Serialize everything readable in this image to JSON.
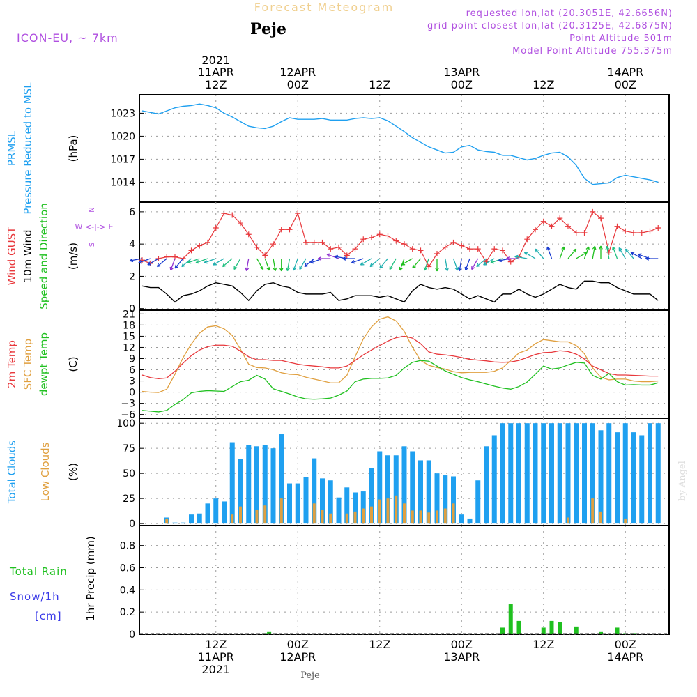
{
  "header": {
    "title": "Forecast Meteogram",
    "station": "Peje",
    "model": "ICON-EU, ~ 7km",
    "requested": "requested lon,lat (20.3051E, 42.6656N)",
    "gridpoint": "grid point closest lon,lat (20.3125E, 42.6875N)",
    "point_alt": "Point Altitude 501m",
    "model_alt": "Model Point Altitude 755.375m",
    "footer_station": "Peje",
    "watermark": "by Angel"
  },
  "colors": {
    "blue": "#1fa0f0",
    "red": "#e8383c",
    "orange": "#e0a040",
    "green": "#20c020",
    "black": "#000000",
    "purple": "#b050e0",
    "snow_blue": "#3a3ae8"
  },
  "chart_data": [
    {
      "panel": "pressure",
      "type": "line",
      "ylabels": [
        "PRMSL",
        "Pressure Reduced to MSL"
      ],
      "unit": "(hPa)",
      "ylim": [
        1011.4,
        1025.4
      ],
      "yticks": [
        1014,
        1017,
        1020,
        1023
      ],
      "grid": true,
      "x": [
        0,
        1,
        2,
        3,
        4,
        5,
        6,
        7,
        8,
        9,
        10,
        11,
        12,
        13,
        14,
        15,
        16,
        17,
        18,
        19,
        20,
        21,
        22,
        23,
        24,
        25,
        26,
        27,
        28,
        29,
        30,
        31,
        32,
        33,
        34,
        35,
        36,
        37,
        38,
        39,
        40,
        41,
        42,
        43,
        44,
        45,
        46,
        47,
        48,
        49,
        50,
        51,
        52,
        53,
        54,
        55,
        56,
        57,
        58,
        59,
        60,
        61,
        62,
        63
      ],
      "values": [
        1023.3,
        1023.1,
        1022.9,
        1023.3,
        1023.7,
        1023.9,
        1024.0,
        1024.2,
        1024.0,
        1023.7,
        1023.0,
        1022.5,
        1021.9,
        1021.3,
        1021.1,
        1021.0,
        1021.3,
        1021.9,
        1022.4,
        1022.2,
        1022.2,
        1022.2,
        1022.3,
        1022.1,
        1022.1,
        1022.1,
        1022.3,
        1022.4,
        1022.3,
        1022.4,
        1022.0,
        1021.3,
        1020.6,
        1019.8,
        1019.2,
        1018.6,
        1018.2,
        1017.8,
        1017.9,
        1018.6,
        1018.8,
        1018.2,
        1018.0,
        1017.9,
        1017.5,
        1017.5,
        1017.2,
        1016.9,
        1017.1,
        1017.5,
        1017.8,
        1017.9,
        1017.3,
        1016.2,
        1014.5,
        1013.7,
        1013.8,
        1013.9,
        1014.6,
        1014.9,
        1014.7,
        1014.5,
        1014.3,
        1014.0
      ]
    },
    {
      "panel": "wind",
      "type": "line",
      "ylabels": [
        "Wind GUST",
        "10m Wind",
        "Speed and Direction"
      ],
      "unit": "(m/s)",
      "compass": [
        "N",
        "W <-|-> E",
        "S"
      ],
      "ylim": [
        -0.1,
        6.6
      ],
      "yticks": [
        0,
        2,
        4,
        6
      ],
      "grid": true,
      "x": [
        0,
        1,
        2,
        3,
        4,
        5,
        6,
        7,
        8,
        9,
        10,
        11,
        12,
        13,
        14,
        15,
        16,
        17,
        18,
        19,
        20,
        21,
        22,
        23,
        24,
        25,
        26,
        27,
        28,
        29,
        30,
        31,
        32,
        33,
        34,
        35,
        36,
        37,
        38,
        39,
        40,
        41,
        42,
        43,
        44,
        45,
        46,
        47,
        48,
        49,
        50,
        51,
        52,
        53,
        54,
        55,
        56,
        57,
        58,
        59,
        60,
        61,
        62,
        63
      ],
      "series": [
        {
          "name": "Wind GUST",
          "values": [
            3.0,
            2.8,
            3.1,
            3.2,
            3.2,
            3.1,
            3.6,
            3.9,
            4.1,
            5.0,
            5.9,
            5.8,
            5.3,
            4.6,
            3.8,
            3.3,
            4.0,
            4.9,
            4.9,
            5.9,
            4.1,
            4.1,
            4.1,
            3.7,
            3.8,
            3.3,
            3.7,
            4.3,
            4.4,
            4.6,
            4.5,
            4.2,
            4.0,
            3.7,
            3.6,
            2.6,
            3.4,
            3.8,
            4.1,
            3.9,
            3.7,
            3.7,
            2.9,
            3.7,
            3.6,
            2.9,
            3.2,
            4.3,
            4.9,
            5.4,
            5.1,
            5.6,
            5.1,
            4.7,
            4.7,
            6.0,
            5.6,
            3.5,
            5.1,
            4.8,
            4.7,
            4.7,
            4.8,
            5.0
          ]
        },
        {
          "name": "10m Wind",
          "values": [
            1.4,
            1.3,
            1.3,
            0.9,
            0.4,
            0.8,
            0.9,
            1.1,
            1.4,
            1.6,
            1.5,
            1.4,
            1.0,
            0.5,
            1.1,
            1.5,
            1.6,
            1.4,
            1.3,
            1.0,
            0.9,
            0.9,
            0.9,
            1.0,
            0.5,
            0.6,
            0.8,
            0.8,
            0.8,
            0.7,
            0.8,
            0.6,
            0.4,
            1.1,
            1.5,
            1.3,
            1.2,
            1.3,
            1.2,
            0.9,
            0.6,
            0.8,
            0.6,
            0.4,
            0.9,
            0.9,
            1.2,
            0.9,
            0.7,
            0.9,
            1.2,
            1.5,
            1.3,
            1.2,
            1.7,
            1.7,
            1.6,
            1.6,
            1.3,
            1.1,
            0.9,
            0.9,
            0.9,
            0.5
          ]
        }
      ],
      "wind_arrows": {
        "y_level": 3.1,
        "dir_deg": [
          260,
          250,
          240,
          230,
          200,
          220,
          230,
          250,
          250,
          250,
          240,
          230,
          210,
          190,
          150,
          160,
          170,
          180,
          190,
          200,
          210,
          230,
          250,
          270,
          290,
          280,
          270,
          250,
          240,
          230,
          220,
          210,
          200,
          240,
          220,
          200,
          180,
          170,
          160,
          190,
          200,
          210,
          230,
          240,
          250,
          260,
          270,
          280,
          300,
          320,
          340,
          20,
          40,
          60,
          20,
          10,
          0,
          350,
          340,
          330,
          320,
          300,
          290,
          270
        ],
        "color_hex": [
          "#1a3cd0",
          "#1a3cd0",
          "#1a3cd0",
          "#1a3cd0",
          "#9030d0",
          "#1a3cd0",
          "#20b0b0",
          "#20c080",
          "#20c080",
          "#20b0b0",
          "#20b0b0",
          "#20c080",
          "#20c080",
          "#9030d0",
          "#20c020",
          "#20c020",
          "#20c020",
          "#20c020",
          "#20c080",
          "#20b0b0",
          "#20b0b0",
          "#1a3cd0",
          "#1a3cd0",
          "#9030d0",
          "#9030d0",
          "#1a3cd0",
          "#1a3cd0",
          "#1a3cd0",
          "#20b0b0",
          "#20b0b0",
          "#20b0b0",
          "#20c080",
          "#20c020",
          "#20c020",
          "#20c020",
          "#20c080",
          "#20c020",
          "#20b0b0",
          "#20b0b0",
          "#1a3cd0",
          "#1a3cd0",
          "#9030d0",
          "#20b0b0",
          "#20b0b0",
          "#20c080",
          "#1a3cd0",
          "#9030d0",
          "#20b0b0",
          "#20b0b0",
          "#20b0b0",
          "#1a3cd0",
          "#20c020",
          "#20c020",
          "#20c020",
          "#20c020",
          "#20c020",
          "#20c020",
          "#20c080",
          "#20c080",
          "#20b0b0",
          "#20b0b0",
          "#1a3cd0",
          "#1a3cd0",
          "#1a3cd0"
        ]
      }
    },
    {
      "panel": "temperature",
      "type": "line",
      "ylabels": [
        "2m Temp",
        "SFC Temp",
        "dewpt Temp"
      ],
      "unit": "(C)",
      "ylim": [
        -7,
        22
      ],
      "yticks": [
        -6,
        -3,
        0,
        3,
        6,
        9,
        12,
        15,
        18,
        21
      ],
      "grid": true,
      "x": [
        0,
        1,
        2,
        3,
        4,
        5,
        6,
        7,
        8,
        9,
        10,
        11,
        12,
        13,
        14,
        15,
        16,
        17,
        18,
        19,
        20,
        21,
        22,
        23,
        24,
        25,
        26,
        27,
        28,
        29,
        30,
        31,
        32,
        33,
        34,
        35,
        36,
        37,
        38,
        39,
        40,
        41,
        42,
        43,
        44,
        45,
        46,
        47,
        48,
        49,
        50,
        51,
        52,
        53,
        54,
        55,
        56,
        57,
        58,
        59,
        60,
        61,
        62,
        63
      ],
      "series": [
        {
          "name": "2m Temp",
          "values": [
            4.6,
            3.9,
            3.6,
            3.8,
            5.6,
            7.8,
            9.8,
            11.3,
            12.2,
            12.6,
            12.6,
            12.3,
            11.0,
            9.5,
            8.7,
            8.7,
            8.5,
            8.5,
            8.0,
            7.5,
            7.2,
            7.0,
            6.8,
            6.5,
            6.5,
            7.0,
            8.5,
            10.0,
            11.3,
            12.5,
            13.7,
            14.6,
            15.0,
            14.5,
            13.0,
            10.8,
            10.2,
            10.0,
            9.7,
            9.3,
            8.8,
            8.6,
            8.4,
            8.1,
            8.0,
            8.1,
            8.5,
            9.3,
            10.1,
            10.6,
            10.7,
            11.1,
            10.9,
            10.2,
            8.9,
            7.0,
            6.0,
            5.0,
            4.6,
            4.6,
            4.5,
            4.4,
            4.3,
            4.3
          ]
        },
        {
          "name": "SFC Temp",
          "values": [
            0.2,
            0.0,
            -0.1,
            0.8,
            4.8,
            9.3,
            12.9,
            15.8,
            17.5,
            17.8,
            17.0,
            15.2,
            11.5,
            7.5,
            6.6,
            6.5,
            6.0,
            5.2,
            4.8,
            4.7,
            4.0,
            3.5,
            3.0,
            2.5,
            2.5,
            4.5,
            9.5,
            14.3,
            17.5,
            19.6,
            20.2,
            19.1,
            16.3,
            12.0,
            8.5,
            7.2,
            6.6,
            6.2,
            5.5,
            5.2,
            5.3,
            5.3,
            5.3,
            5.6,
            6.5,
            8.5,
            10.5,
            11.3,
            13.0,
            14.1,
            13.8,
            13.5,
            13.5,
            12.5,
            10.3,
            6.5,
            4.0,
            3.3,
            3.5,
            3.5,
            3.0,
            2.8,
            2.8,
            3.0
          ]
        },
        {
          "name": "dewpt Temp",
          "values": [
            -4.9,
            -5.1,
            -5.3,
            -4.9,
            -3.3,
            -2.0,
            -0.2,
            0.2,
            0.4,
            0.3,
            0.2,
            1.5,
            2.8,
            3.2,
            4.5,
            3.5,
            0.9,
            0.2,
            -0.5,
            -1.3,
            -1.8,
            -1.9,
            -1.8,
            -1.6,
            -0.8,
            0.3,
            2.8,
            3.5,
            3.7,
            3.7,
            3.8,
            4.5,
            6.5,
            8.0,
            8.5,
            8.3,
            7.0,
            5.7,
            4.8,
            3.9,
            3.3,
            2.8,
            2.2,
            1.6,
            1.1,
            0.8,
            1.5,
            2.7,
            4.8,
            7.0,
            6.2,
            6.5,
            7.3,
            8.0,
            7.8,
            4.5,
            3.5,
            5.0,
            2.8,
            1.9,
            2.0,
            1.9,
            1.9,
            2.5
          ]
        }
      ]
    },
    {
      "panel": "clouds",
      "type": "bar",
      "ylabels": [
        "Total Clouds",
        "Low Clouds"
      ],
      "unit": "(%)",
      "ylim": [
        -2,
        105
      ],
      "yticks": [
        0,
        25,
        50,
        75,
        100
      ],
      "grid": true,
      "x": [
        0,
        1,
        2,
        3,
        4,
        5,
        6,
        7,
        8,
        9,
        10,
        11,
        12,
        13,
        14,
        15,
        16,
        17,
        18,
        19,
        20,
        21,
        22,
        23,
        24,
        25,
        26,
        27,
        28,
        29,
        30,
        31,
        32,
        33,
        34,
        35,
        36,
        37,
        38,
        39,
        40,
        41,
        42,
        43,
        44,
        45,
        46,
        47,
        48,
        49,
        50,
        51,
        52,
        53,
        54,
        55,
        56,
        57,
        58,
        59,
        60,
        61,
        62,
        63
      ],
      "series": [
        {
          "name": "Total Clouds",
          "values": [
            0,
            0,
            0,
            6,
            1,
            1,
            9,
            10,
            20,
            25,
            22,
            81,
            64,
            78,
            77,
            78,
            75,
            89,
            40,
            40,
            46,
            65,
            45,
            43,
            26,
            36,
            31,
            32,
            55,
            72,
            68,
            68,
            77,
            72,
            63,
            63,
            50,
            48,
            47,
            9,
            5,
            43,
            77,
            88,
            100,
            100,
            100,
            100,
            100,
            100,
            100,
            100,
            100,
            100,
            100,
            100,
            93,
            100,
            91,
            100,
            91,
            88,
            100,
            100
          ]
        },
        {
          "name": "Low Clouds",
          "values": [
            0,
            0,
            0,
            5,
            0,
            0,
            0,
            0,
            0,
            0,
            0,
            9,
            17,
            0,
            14,
            18,
            0,
            25,
            0,
            0,
            0,
            20,
            14,
            10,
            0,
            10,
            12,
            15,
            17,
            24,
            25,
            28,
            20,
            13,
            13,
            11,
            13,
            15,
            20,
            0,
            0,
            0,
            0,
            0,
            0,
            0,
            0,
            0,
            0,
            0,
            0,
            0,
            6,
            0,
            0,
            25,
            12,
            0,
            0,
            5,
            0,
            0,
            0,
            0
          ]
        }
      ]
    },
    {
      "panel": "precip",
      "type": "bar",
      "ylabels": [
        "Total Rain",
        "Snow/1h",
        "[cm]"
      ],
      "unit": "1hr Precip (mm)",
      "ylim": [
        0,
        0.98
      ],
      "yticks": [
        0,
        0.2,
        0.4,
        0.6,
        0.8
      ],
      "ytick_labels": [
        "0",
        "0.2",
        "0.4",
        "0.6",
        "0.8"
      ],
      "grid": true,
      "series": [
        {
          "name": "Total Rain",
          "x": [
            15,
            15.5,
            44,
            45,
            46,
            49,
            50,
            51,
            53,
            56,
            58,
            59,
            60
          ],
          "values": [
            0.01,
            0.02,
            0.06,
            0.27,
            0.12,
            0.06,
            0.12,
            0.11,
            0.07,
            0.02,
            0.06,
            0.01,
            0.01
          ]
        },
        {
          "name": "Snow/1h",
          "x": [],
          "values": []
        }
      ]
    }
  ],
  "xaxis": {
    "top_labels": [
      {
        "t": 9.0,
        "l1": "2021",
        "l2": "11APR",
        "l3": "12Z"
      },
      {
        "t": 19.0,
        "l1": "",
        "l2": "12APR",
        "l3": "00Z"
      },
      {
        "t": 29.0,
        "l1": "",
        "l2": "",
        "l3": "12Z"
      },
      {
        "t": 39.0,
        "l1": "",
        "l2": "13APR",
        "l3": "00Z"
      },
      {
        "t": 49.0,
        "l1": "",
        "l2": "",
        "l3": "12Z"
      },
      {
        "t": 59.0,
        "l1": "",
        "l2": "14APR",
        "l3": "00Z"
      }
    ],
    "bottom_labels": [
      {
        "t": 9.0,
        "l1": "12Z",
        "l2": "11APR",
        "l3": "2021"
      },
      {
        "t": 19.0,
        "l1": "00Z",
        "l2": "12APR",
        "l3": ""
      },
      {
        "t": 29.0,
        "l1": "12Z",
        "l2": "",
        "l3": ""
      },
      {
        "t": 39.0,
        "l1": "00Z",
        "l2": "13APR",
        "l3": ""
      },
      {
        "t": 49.0,
        "l1": "12Z",
        "l2": "",
        "l3": ""
      },
      {
        "t": 59.0,
        "l1": "00Z",
        "l2": "14APR",
        "l3": ""
      }
    ]
  }
}
